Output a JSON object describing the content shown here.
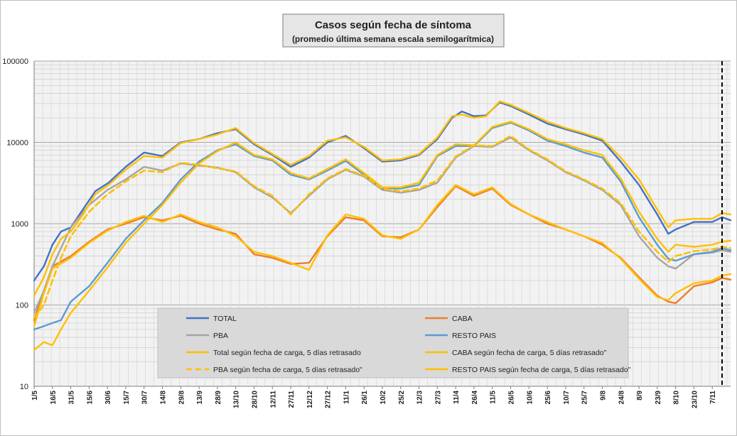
{
  "chart_data": {
    "type": "line",
    "title": "Casos según fecha de síntoma",
    "subtitle": "(promedio última semana escala semilogarítmica)",
    "y_scale": "log",
    "ylim": [
      10,
      100000
    ],
    "y_ticks": [
      "10",
      "100",
      "1000",
      "10000",
      "100000"
    ],
    "grid": true,
    "legend_position": "bottom-center",
    "marker_line_date": "2021-11-15",
    "x_tick_labels": [
      "1/5",
      "16/5",
      "31/5",
      "15/6",
      "30/6",
      "15/7",
      "30/7",
      "14/8",
      "29/8",
      "13/9",
      "28/9",
      "13/10",
      "28/10",
      "12/11",
      "27/11",
      "12/12",
      "27/12",
      "11/1",
      "26/1",
      "10/2",
      "25/2",
      "12/3",
      "27/3",
      "11/4",
      "26/4",
      "11/5",
      "26/5",
      "10/6",
      "25/6",
      "10/7",
      "25/7",
      "9/8",
      "24/8",
      "8/9",
      "23/9",
      "8/10",
      "23/10",
      "7/11"
    ],
    "x_tick_dates": [
      "2020-05-01",
      "2020-05-16",
      "2020-05-31",
      "2020-06-15",
      "2020-06-30",
      "2020-07-15",
      "2020-07-30",
      "2020-08-14",
      "2020-08-29",
      "2020-09-13",
      "2020-09-28",
      "2020-10-13",
      "2020-10-28",
      "2020-11-12",
      "2020-11-27",
      "2020-12-12",
      "2020-12-27",
      "2021-01-11",
      "2021-01-26",
      "2021-02-10",
      "2021-02-25",
      "2021-03-12",
      "2021-03-27",
      "2021-04-11",
      "2021-04-26",
      "2021-05-11",
      "2021-05-26",
      "2021-06-10",
      "2021-06-25",
      "2021-07-10",
      "2021-07-25",
      "2021-08-09",
      "2021-08-24",
      "2021-09-08",
      "2021-09-23",
      "2021-10-08",
      "2021-10-23",
      "2021-11-07"
    ],
    "x_range": [
      "2020-05-01",
      "2021-11-22"
    ],
    "series": [
      {
        "name": "TOTAL",
        "color": "#4472C4",
        "dashed": false,
        "x": [
          "2020-05-01",
          "2020-05-09",
          "2020-05-16",
          "2020-05-23",
          "2020-05-31",
          "2020-06-10",
          "2020-06-20",
          "2020-07-01",
          "2020-07-15",
          "2020-07-30",
          "2020-08-14",
          "2020-08-29",
          "2020-09-13",
          "2020-09-28",
          "2020-10-13",
          "2020-10-28",
          "2020-11-12",
          "2020-11-27",
          "2020-12-12",
          "2020-12-27",
          "2021-01-11",
          "2021-01-26",
          "2021-02-10",
          "2021-02-25",
          "2021-03-12",
          "2021-03-27",
          "2021-04-08",
          "2021-04-16",
          "2021-04-26",
          "2021-05-06",
          "2021-05-17",
          "2021-05-26",
          "2021-06-10",
          "2021-06-25",
          "2021-07-10",
          "2021-07-25",
          "2021-08-09",
          "2021-08-24",
          "2021-09-08",
          "2021-09-23",
          "2021-10-02",
          "2021-10-08",
          "2021-10-23",
          "2021-11-07",
          "2021-11-15",
          "2021-11-22"
        ],
        "y": [
          200,
          300,
          550,
          800,
          900,
          1500,
          2500,
          3200,
          5000,
          7500,
          6800,
          10000,
          11000,
          13000,
          14500,
          9500,
          7000,
          5000,
          6500,
          10000,
          12000,
          8500,
          5800,
          6000,
          7000,
          11000,
          20000,
          24000,
          21000,
          21500,
          31000,
          28000,
          22000,
          17000,
          14500,
          12500,
          10500,
          5800,
          3000,
          1300,
          750,
          850,
          1050,
          1050,
          1200,
          1100
        ]
      },
      {
        "name": "CABA",
        "color": "#ED7D31",
        "dashed": false,
        "x": [
          "2020-05-01",
          "2020-05-09",
          "2020-05-16",
          "2020-05-31",
          "2020-06-15",
          "2020-06-30",
          "2020-07-15",
          "2020-07-30",
          "2020-08-14",
          "2020-08-29",
          "2020-09-13",
          "2020-09-28",
          "2020-10-13",
          "2020-10-28",
          "2020-11-12",
          "2020-11-27",
          "2020-12-12",
          "2020-12-27",
          "2021-01-11",
          "2021-01-26",
          "2021-02-10",
          "2021-02-25",
          "2021-03-12",
          "2021-03-27",
          "2021-04-11",
          "2021-04-26",
          "2021-05-11",
          "2021-05-26",
          "2021-06-10",
          "2021-06-25",
          "2021-07-10",
          "2021-07-25",
          "2021-08-09",
          "2021-08-24",
          "2021-09-08",
          "2021-09-23",
          "2021-10-02",
          "2021-10-08",
          "2021-10-23",
          "2021-11-07",
          "2021-11-15",
          "2021-11-22"
        ],
        "y": [
          65,
          150,
          300,
          400,
          600,
          850,
          1000,
          1200,
          1100,
          1250,
          1000,
          850,
          750,
          420,
          380,
          320,
          330,
          700,
          1200,
          1100,
          700,
          680,
          850,
          1600,
          2900,
          2200,
          2700,
          1700,
          1300,
          1000,
          850,
          700,
          550,
          380,
          220,
          130,
          110,
          105,
          170,
          190,
          215,
          205
        ]
      },
      {
        "name": "PBA",
        "color": "#A5A5A5",
        "dashed": false,
        "x": [
          "2020-05-01",
          "2020-05-09",
          "2020-05-16",
          "2020-05-23",
          "2020-05-31",
          "2020-06-15",
          "2020-06-30",
          "2020-07-15",
          "2020-07-30",
          "2020-08-14",
          "2020-08-29",
          "2020-09-13",
          "2020-09-28",
          "2020-10-13",
          "2020-10-28",
          "2020-11-12",
          "2020-11-27",
          "2020-12-12",
          "2020-12-27",
          "2021-01-11",
          "2021-01-26",
          "2021-02-10",
          "2021-02-25",
          "2021-03-12",
          "2021-03-27",
          "2021-04-11",
          "2021-04-26",
          "2021-05-11",
          "2021-05-26",
          "2021-06-10",
          "2021-06-25",
          "2021-07-10",
          "2021-07-25",
          "2021-08-09",
          "2021-08-24",
          "2021-09-08",
          "2021-09-23",
          "2021-10-02",
          "2021-10-08",
          "2021-10-23",
          "2021-11-07",
          "2021-11-15",
          "2021-11-22"
        ],
        "y": [
          80,
          150,
          300,
          500,
          900,
          1700,
          2600,
          3500,
          5000,
          4500,
          5500,
          5200,
          4900,
          4300,
          2800,
          2100,
          1350,
          2200,
          3500,
          4600,
          3800,
          2600,
          2400,
          2600,
          3200,
          6500,
          9000,
          8800,
          11500,
          8000,
          6000,
          4300,
          3400,
          2600,
          1700,
          700,
          380,
          300,
          280,
          420,
          440,
          470,
          450
        ]
      },
      {
        "name": "RESTO PAIS",
        "color": "#5B9BD5",
        "dashed": false,
        "x": [
          "2020-05-01",
          "2020-05-09",
          "2020-05-16",
          "2020-05-23",
          "2020-05-31",
          "2020-06-15",
          "2020-06-30",
          "2020-07-15",
          "2020-07-30",
          "2020-08-14",
          "2020-08-29",
          "2020-09-13",
          "2020-09-28",
          "2020-10-13",
          "2020-10-28",
          "2020-11-12",
          "2020-11-27",
          "2020-12-12",
          "2020-12-27",
          "2021-01-11",
          "2021-01-26",
          "2021-02-10",
          "2021-02-25",
          "2021-03-12",
          "2021-03-27",
          "2021-04-11",
          "2021-04-26",
          "2021-05-11",
          "2021-05-26",
          "2021-06-10",
          "2021-06-25",
          "2021-07-10",
          "2021-07-25",
          "2021-08-09",
          "2021-08-24",
          "2021-09-08",
          "2021-09-23",
          "2021-10-02",
          "2021-10-08",
          "2021-10-23",
          "2021-11-07",
          "2021-11-15",
          "2021-11-22"
        ],
        "y": [
          50,
          55,
          60,
          65,
          110,
          170,
          330,
          650,
          1100,
          1800,
          3500,
          5800,
          8000,
          9500,
          6800,
          6000,
          4000,
          3500,
          4500,
          5900,
          4000,
          2700,
          2700,
          3000,
          6800,
          9000,
          9000,
          15000,
          17500,
          14000,
          10500,
          9000,
          7500,
          6500,
          3300,
          1200,
          550,
          370,
          350,
          420,
          450,
          500,
          470
        ]
      },
      {
        "name": "Total según fecha de carga, 5 días retrasado",
        "color": "#FFC000",
        "dashed": false,
        "x": [
          "2020-05-01",
          "2020-05-09",
          "2020-05-16",
          "2020-05-23",
          "2020-05-31",
          "2020-06-10",
          "2020-06-20",
          "2020-07-01",
          "2020-07-15",
          "2020-07-30",
          "2020-08-14",
          "2020-08-29",
          "2020-09-13",
          "2020-09-28",
          "2020-10-13",
          "2020-10-28",
          "2020-11-12",
          "2020-11-27",
          "2020-12-12",
          "2020-12-27",
          "2021-01-11",
          "2021-01-26",
          "2021-02-10",
          "2021-02-25",
          "2021-03-12",
          "2021-03-27",
          "2021-04-08",
          "2021-04-16",
          "2021-04-26",
          "2021-05-06",
          "2021-05-17",
          "2021-05-26",
          "2021-06-10",
          "2021-06-25",
          "2021-07-10",
          "2021-07-25",
          "2021-08-09",
          "2021-08-24",
          "2021-09-08",
          "2021-09-23",
          "2021-10-02",
          "2021-10-08",
          "2021-10-23",
          "2021-11-07",
          "2021-11-15",
          "2021-11-22"
        ],
        "y": [
          130,
          220,
          420,
          650,
          800,
          1300,
          2300,
          3000,
          4600,
          6800,
          6500,
          9800,
          11000,
          12500,
          15000,
          9800,
          7200,
          5300,
          6800,
          10500,
          11500,
          8800,
          6000,
          6200,
          7200,
          11500,
          21000,
          22000,
          20000,
          21000,
          32000,
          29000,
          23000,
          18000,
          15000,
          13000,
          11000,
          6500,
          3500,
          1500,
          900,
          1100,
          1150,
          1150,
          1350,
          1300
        ]
      },
      {
        "name": "CABA según fecha de carga, 5 días retrasado\"",
        "color": "#FFC000",
        "dashed": false,
        "x": [
          "2020-05-01",
          "2020-05-09",
          "2020-05-16",
          "2020-05-31",
          "2020-06-15",
          "2020-06-30",
          "2020-07-15",
          "2020-07-30",
          "2020-08-14",
          "2020-08-29",
          "2020-09-13",
          "2020-09-28",
          "2020-10-13",
          "2020-10-28",
          "2020-11-12",
          "2020-11-27",
          "2020-12-12",
          "2020-12-27",
          "2021-01-11",
          "2021-01-26",
          "2021-02-10",
          "2021-02-25",
          "2021-03-12",
          "2021-03-27",
          "2021-04-11",
          "2021-04-26",
          "2021-05-11",
          "2021-05-26",
          "2021-06-10",
          "2021-06-25",
          "2021-07-10",
          "2021-07-25",
          "2021-08-09",
          "2021-08-24",
          "2021-09-08",
          "2021-09-23",
          "2021-10-02",
          "2021-10-08",
          "2021-10-23",
          "2021-11-07",
          "2021-11-15",
          "2021-11-22"
        ],
        "y": [
          55,
          140,
          280,
          380,
          580,
          820,
          1050,
          1250,
          1050,
          1300,
          1050,
          900,
          700,
          450,
          400,
          330,
          270,
          720,
          1300,
          1150,
          720,
          650,
          850,
          1700,
          3000,
          2300,
          2800,
          1750,
          1300,
          1050,
          850,
          700,
          580,
          370,
          210,
          125,
          115,
          140,
          185,
          200,
          230,
          240
        ]
      },
      {
        "name": "PBA según fecha de carga, 5 días retrasado\"",
        "color": "#FFC000",
        "dashed": true,
        "x": [
          "2020-05-01",
          "2020-05-09",
          "2020-05-16",
          "2020-05-23",
          "2020-05-31",
          "2020-06-15",
          "2020-06-30",
          "2020-07-15",
          "2020-07-30",
          "2020-08-14",
          "2020-08-29",
          "2020-09-13",
          "2020-09-28",
          "2020-10-13",
          "2020-10-28",
          "2020-11-12",
          "2020-11-27",
          "2020-12-12",
          "2020-12-27",
          "2021-01-11",
          "2021-01-26",
          "2021-02-10",
          "2021-02-25",
          "2021-03-12",
          "2021-03-27",
          "2021-04-11",
          "2021-04-26",
          "2021-05-11",
          "2021-05-26",
          "2021-06-10",
          "2021-06-25",
          "2021-07-10",
          "2021-07-25",
          "2021-08-09",
          "2021-08-24",
          "2021-09-08",
          "2021-09-23",
          "2021-10-02",
          "2021-10-08",
          "2021-10-23",
          "2021-11-07",
          "2021-11-15",
          "2021-11-22"
        ],
        "y": [
          70,
          100,
          200,
          380,
          700,
          1400,
          2300,
          3300,
          4500,
          4300,
          5600,
          5300,
          4800,
          4400,
          2900,
          2200,
          1300,
          2300,
          3600,
          4700,
          3900,
          2700,
          2500,
          2700,
          3400,
          6700,
          9200,
          9000,
          12000,
          8200,
          6200,
          4400,
          3500,
          2700,
          1800,
          800,
          450,
          340,
          400,
          460,
          480,
          520,
          500
        ]
      },
      {
        "name": "RESTO PAIS según fecha de carga, 5 días retrasado\"",
        "color": "#FFC000",
        "dashed": false,
        "x": [
          "2020-05-01",
          "2020-05-09",
          "2020-05-16",
          "2020-05-23",
          "2020-05-31",
          "2020-06-15",
          "2020-06-30",
          "2020-07-15",
          "2020-07-30",
          "2020-08-14",
          "2020-08-29",
          "2020-09-13",
          "2020-09-28",
          "2020-10-13",
          "2020-10-28",
          "2020-11-12",
          "2020-11-27",
          "2020-12-12",
          "2020-12-27",
          "2021-01-11",
          "2021-01-26",
          "2021-02-10",
          "2021-02-25",
          "2021-03-12",
          "2021-03-27",
          "2021-04-11",
          "2021-04-26",
          "2021-05-11",
          "2021-05-26",
          "2021-06-10",
          "2021-06-25",
          "2021-07-10",
          "2021-07-25",
          "2021-08-09",
          "2021-08-24",
          "2021-09-08",
          "2021-09-23",
          "2021-10-02",
          "2021-10-08",
          "2021-10-23",
          "2021-11-07",
          "2021-11-15",
          "2021-11-22"
        ],
        "y": [
          28,
          35,
          32,
          50,
          80,
          150,
          290,
          580,
          1000,
          1700,
          3200,
          5500,
          7800,
          10000,
          7000,
          6200,
          4200,
          3600,
          4700,
          6200,
          4200,
          2800,
          2800,
          3200,
          7000,
          9500,
          9200,
          15500,
          18000,
          14500,
          11000,
          9500,
          8000,
          7000,
          3600,
          1400,
          650,
          450,
          550,
          520,
          550,
          600,
          620
        ]
      }
    ],
    "legend": [
      "TOTAL",
      "CABA",
      "PBA",
      "RESTO PAIS",
      "Total según fecha de carga, 5 días retrasado",
      "CABA según fecha de carga, 5 días retrasado\"",
      "PBA según fecha de carga, 5 días retrasado\"",
      "RESTO PAIS según fecha de carga, 5 días retrasado\""
    ]
  }
}
